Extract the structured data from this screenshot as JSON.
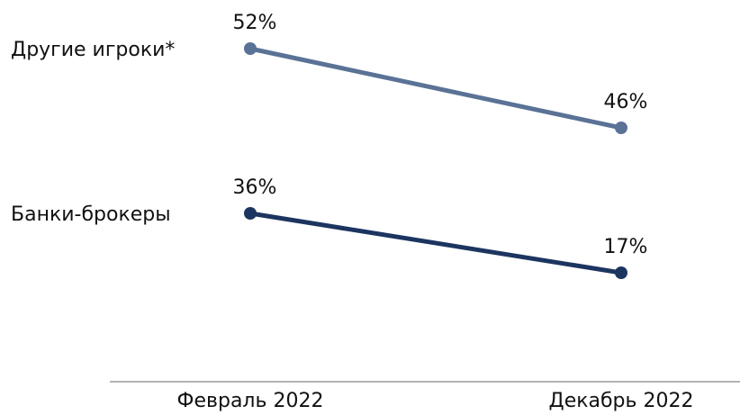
{
  "chart_data": {
    "type": "line",
    "title": "",
    "xlabel": "",
    "ylabel": "",
    "categories": [
      "Февраль 2022",
      "Декабрь 2022"
    ],
    "series": [
      {
        "name": "Другие игроки*",
        "values": [
          52,
          46
        ],
        "labels": [
          "52%",
          "46%"
        ],
        "color": "#5a7296"
      },
      {
        "name": "Банки-брокеры",
        "values": [
          36,
          17
        ],
        "labels": [
          "36%",
          "17%"
        ],
        "color": "#1c3560"
      }
    ],
    "unit": "%",
    "grid": false,
    "y_axis_visible": false,
    "axis_color": "#b3b3b3"
  }
}
